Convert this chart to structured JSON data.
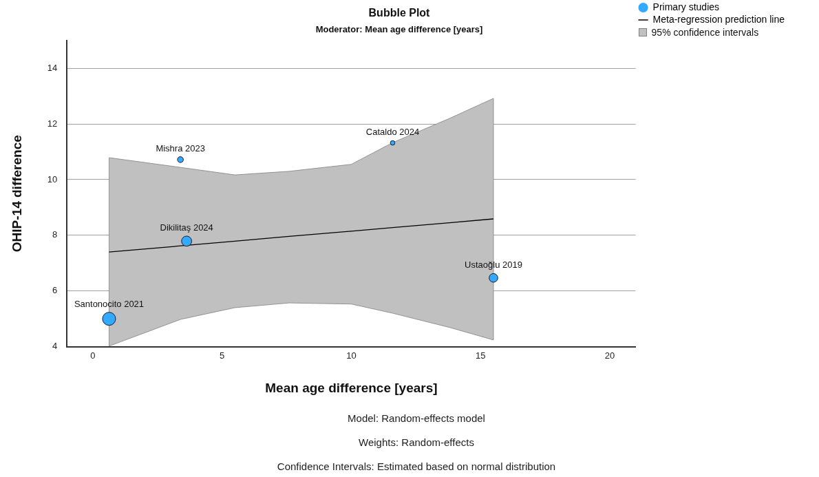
{
  "chart_data": {
    "type": "bubble",
    "title": "Bubble Plot",
    "subtitle": "Moderator: Mean age difference [years]",
    "xlabel": "Mean age difference [years]",
    "ylabel": "OHIP-14 difference",
    "xlim": [
      -1,
      21
    ],
    "xticks": [
      0,
      5,
      10,
      15,
      20
    ],
    "ylim": [
      4,
      15
    ],
    "yticks": [
      4,
      6,
      8,
      10,
      12,
      14
    ],
    "grid": "y",
    "legend": "top right",
    "series": [
      {
        "name": "Primary studies",
        "type": "bubble",
        "marker": "circle",
        "color": "#33aaff",
        "x": [
          0.63,
          3.39,
          3.63,
          11.6,
          15.5
        ],
        "values": [
          5.0,
          10.72,
          7.79,
          11.32,
          6.47
        ],
        "sizes": [
          1,
          0.2,
          0.6,
          0.12,
          0.44
        ]
      },
      {
        "name": "Meta-regression prediction line",
        "type": "line",
        "color": "#000000",
        "x": [
          0.63,
          3.4,
          5.5,
          7.6,
          10,
          11.6,
          13.8,
          15.5
        ],
        "values": [
          7.4,
          7.62,
          7.79,
          7.96,
          8.15,
          8.28,
          8.45,
          8.59
        ],
        "lower": [
          4.02,
          4.98,
          5.4,
          5.57,
          5.53,
          5.2,
          4.69,
          4.24
        ],
        "upper": [
          10.79,
          10.44,
          10.17,
          10.3,
          10.55,
          11.33,
          12.2,
          12.92
        ]
      }
    ],
    "annotations": [
      {
        "text": "95% confidence intervals"
      },
      {
        "text": "Santonocito 2021",
        "x": 0.63,
        "y": 5.0
      },
      {
        "text": "Mishra 2023",
        "x": 3.39,
        "y": 10.72
      },
      {
        "text": "Dikilitaş 2024",
        "x": 3.63,
        "y": 7.79
      },
      {
        "text": "Cataldo 2024",
        "x": 11.6,
        "y": 11.32
      },
      {
        "text": "Ustaoğlu 2019",
        "x": 15.5,
        "y": 6.47
      },
      "Model: Random-effects model",
      "Weights: Random-effects",
      "Confidence Intervals: Estimated based on normal distribution"
    ]
  }
}
